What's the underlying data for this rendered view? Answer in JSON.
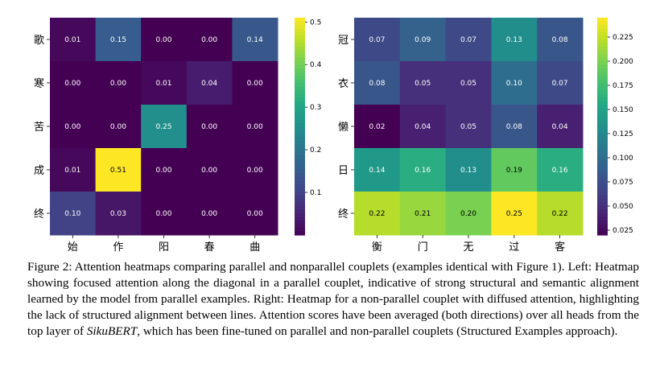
{
  "chart_data": [
    {
      "type": "heatmap",
      "rows": [
        "歌",
        "寒",
        "苦",
        "成",
        "终"
      ],
      "cols": [
        "始",
        "作",
        "阳",
        "春",
        "曲"
      ],
      "values": [
        [
          0.01,
          0.15,
          0.0,
          0.0,
          0.14
        ],
        [
          0.0,
          0.0,
          0.01,
          0.04,
          0.0
        ],
        [
          0.0,
          0.0,
          0.25,
          0.0,
          0.0
        ],
        [
          0.01,
          0.51,
          0.0,
          0.0,
          0.0
        ],
        [
          0.1,
          0.03,
          0.0,
          0.0,
          0.0
        ]
      ],
      "labels": [
        [
          "0.01",
          "0.15",
          "0.00",
          "0.00",
          "0.14"
        ],
        [
          "0.00",
          "0.00",
          "0.01",
          "0.04",
          "0.00"
        ],
        [
          "0.00",
          "0.00",
          "0.25",
          "0.00",
          "0.00"
        ],
        [
          "0.01",
          "0.51",
          "0.00",
          "0.00",
          "0.00"
        ],
        [
          "0.10",
          "0.03",
          "0.00",
          "0.00",
          "0.00"
        ]
      ],
      "vmin": 0.0,
      "vmax": 0.51,
      "colorscale": "viridis",
      "colorbar_ticks": [
        0.1,
        0.2,
        0.3,
        0.4,
        0.5
      ],
      "colorbar_tick_labels": [
        "0.1",
        "0.2",
        "0.3",
        "0.4",
        "0.5"
      ]
    },
    {
      "type": "heatmap",
      "rows": [
        "冠",
        "衣",
        "懒",
        "日",
        "终"
      ],
      "cols": [
        "衡",
        "门",
        "无",
        "过",
        "客"
      ],
      "values": [
        [
          0.07,
          0.09,
          0.07,
          0.13,
          0.08
        ],
        [
          0.08,
          0.05,
          0.05,
          0.1,
          0.07
        ],
        [
          0.02,
          0.04,
          0.05,
          0.08,
          0.04
        ],
        [
          0.14,
          0.16,
          0.13,
          0.19,
          0.16
        ],
        [
          0.22,
          0.21,
          0.2,
          0.25,
          0.22
        ]
      ],
      "labels": [
        [
          "0.07",
          "0.09",
          "0.07",
          "0.13",
          "0.08"
        ],
        [
          "0.08",
          "0.05",
          "0.05",
          "0.10",
          "0.07"
        ],
        [
          "0.02",
          "0.04",
          "0.05",
          "0.08",
          "0.04"
        ],
        [
          "0.14",
          "0.16",
          "0.13",
          "0.19",
          "0.16"
        ],
        [
          "0.22",
          "0.21",
          "0.20",
          "0.25",
          "0.22"
        ]
      ],
      "vmin": 0.02,
      "vmax": 0.245,
      "colorscale": "viridis",
      "colorbar_ticks": [
        0.025,
        0.05,
        0.075,
        0.1,
        0.125,
        0.15,
        0.175,
        0.2,
        0.225
      ],
      "colorbar_tick_labels": [
        "0.025",
        "0.050",
        "0.075",
        "0.100",
        "0.125",
        "0.150",
        "0.175",
        "0.200",
        "0.225"
      ]
    }
  ],
  "caption": {
    "part1": "Figure 2: Attention heatmaps comparing parallel and nonparallel couplets (examples identical with Figure 1). Left: Heatmap showing focused attention along the diagonal in a parallel couplet, indicative of strong structural and semantic alignment learned by the model from parallel examples. Right: Heatmap for a non-parallel couplet with diffused attention, highlighting the lack of structured alignment between lines. Attention scores have been averaged (both directions) over all heads from the top layer of ",
    "model_name": "SikuBERT",
    "part2": ", which has been fine-tuned on parallel and non-parallel couplets (Structured Examples approach)."
  }
}
